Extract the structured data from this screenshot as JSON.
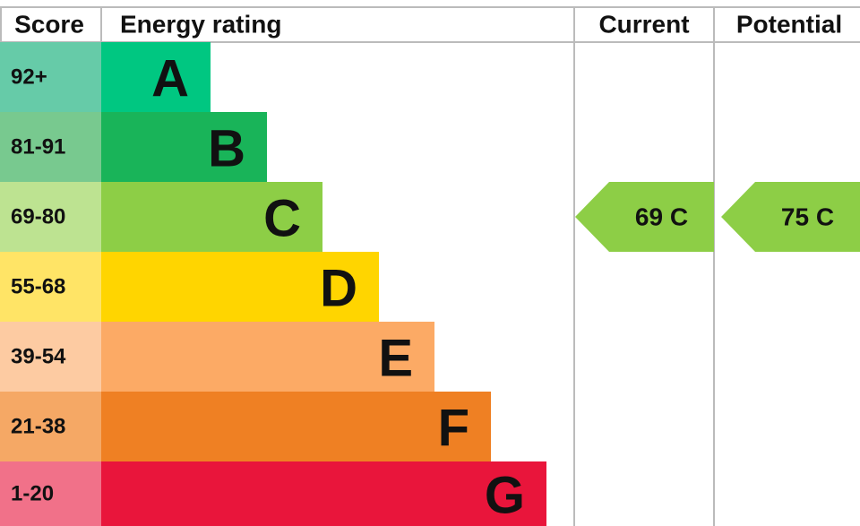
{
  "header": {
    "score": "Score",
    "rating": "Energy rating",
    "current": "Current",
    "potential": "Potential"
  },
  "bands": [
    {
      "score": "92+",
      "letter": "A",
      "color": "#00c781",
      "light": "#66cba8"
    },
    {
      "score": "81-91",
      "letter": "B",
      "color": "#19b459",
      "light": "#78c98f"
    },
    {
      "score": "69-80",
      "letter": "C",
      "color": "#8dce46",
      "light": "#bde391"
    },
    {
      "score": "55-68",
      "letter": "D",
      "color": "#ffd500",
      "light": "#ffe466"
    },
    {
      "score": "39-54",
      "letter": "E",
      "color": "#fcaa65",
      "light": "#fdcba2"
    },
    {
      "score": "21-38",
      "letter": "F",
      "color": "#ef8023",
      "light": "#f5a865"
    },
    {
      "score": "1-20",
      "letter": "G",
      "color": "#e9153b",
      "light": "#f17189"
    }
  ],
  "current": {
    "label": "69 C",
    "band": 2
  },
  "potential": {
    "label": "75 C",
    "band": 2
  }
}
